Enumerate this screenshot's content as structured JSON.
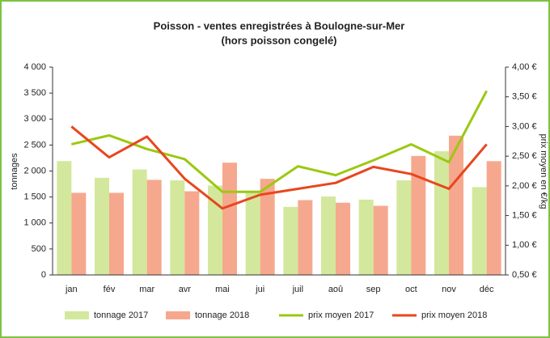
{
  "chart_data": {
    "type": "combo",
    "title": "Poisson - ventes enregistrées à Boulogne-sur-Mer",
    "subtitle": "(hors poisson congelé)",
    "y_label": "tonnages",
    "y2_label": "prix moyen en €/kg",
    "categories": [
      "jan",
      "fév",
      "mar",
      "avr",
      "mai",
      "jui",
      "juil",
      "aoû",
      "sep",
      "oct",
      "nov",
      "déc"
    ],
    "series": [
      {
        "name": "tonnage 2017",
        "type": "bar",
        "color": "#d3e89c",
        "values": [
          2190,
          1870,
          2030,
          1820,
          1720,
          1600,
          1310,
          1510,
          1450,
          1820,
          2380,
          1690
        ]
      },
      {
        "name": "tonnage 2018",
        "type": "bar",
        "color": "#f6a88e",
        "values": [
          1580,
          1580,
          1830,
          1610,
          2160,
          1850,
          1440,
          1390,
          1330,
          2290,
          2680,
          2190
        ]
      },
      {
        "name": "prix moyen 2017",
        "type": "line",
        "axis": "y2",
        "color": "#9cc812",
        "values": [
          2.7,
          2.85,
          2.62,
          2.45,
          1.9,
          1.9,
          2.33,
          2.18,
          2.43,
          2.7,
          2.4,
          3.6
        ]
      },
      {
        "name": "prix moyen 2018",
        "type": "line",
        "axis": "y2",
        "color": "#e8461e",
        "values": [
          3.0,
          2.48,
          2.83,
          2.12,
          1.62,
          1.85,
          1.95,
          2.05,
          2.32,
          2.2,
          1.95,
          2.7
        ]
      }
    ],
    "ylim": [
      0,
      4000
    ],
    "yticks": [
      0,
      500,
      {
        "value": 1000,
        "label": "1 000"
      },
      {
        "value": 1500,
        "label": "1 500"
      },
      {
        "value": 2000,
        "label": "2 000"
      },
      {
        "value": 2500,
        "label": "2 500"
      },
      {
        "value": 3000,
        "label": "3 000"
      },
      {
        "value": 3500,
        "label": "3 500"
      },
      {
        "value": 4000,
        "label": "4 000"
      }
    ],
    "y2lim": [
      0.5,
      4.0
    ],
    "y2ticks": [
      {
        "value": 0.5,
        "label": "0,50 €"
      },
      {
        "value": 1.0,
        "label": "1,00 €"
      },
      {
        "value": 1.5,
        "label": "1,50 €"
      },
      {
        "value": 2.0,
        "label": "2,00 €"
      },
      {
        "value": 2.5,
        "label": "2,50 €"
      },
      {
        "value": 3.0,
        "label": "3,00 €"
      },
      {
        "value": 3.5,
        "label": "3,50 €"
      },
      {
        "value": 4.0,
        "label": "4,00 €"
      }
    ],
    "grid": false,
    "legend": "bottom"
  }
}
